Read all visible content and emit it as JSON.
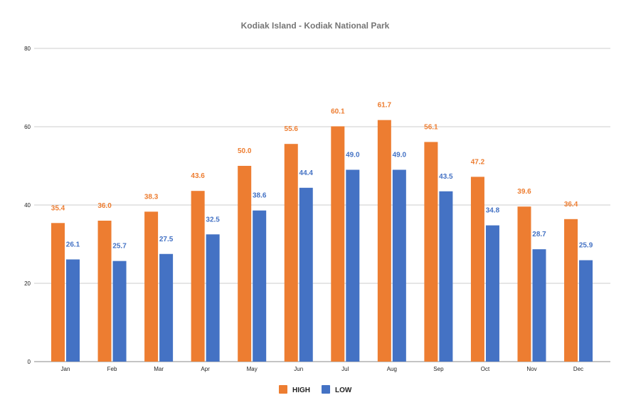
{
  "chart_data": {
    "type": "bar",
    "title": "Kodiak Island - Kodiak National Park",
    "categories": [
      "Jan",
      "Feb",
      "Mar",
      "Apr",
      "May",
      "Jun",
      "Jul",
      "Aug",
      "Sep",
      "Oct",
      "Nov",
      "Dec"
    ],
    "series": [
      {
        "name": "HIGH",
        "color": "#ed7d31",
        "values": [
          35.4,
          36.0,
          38.3,
          43.6,
          50.0,
          55.6,
          60.1,
          61.7,
          56.1,
          47.2,
          39.6,
          36.4
        ]
      },
      {
        "name": "LOW",
        "color": "#4472c4",
        "values": [
          26.1,
          25.7,
          27.5,
          32.5,
          38.6,
          44.4,
          49.0,
          49.0,
          43.5,
          34.8,
          28.7,
          25.9
        ]
      }
    ],
    "ylim": [
      0,
      80
    ],
    "yticks": [
      0,
      20,
      40,
      60,
      80
    ],
    "grid": true,
    "legend": "bottom",
    "data_labels": true
  }
}
